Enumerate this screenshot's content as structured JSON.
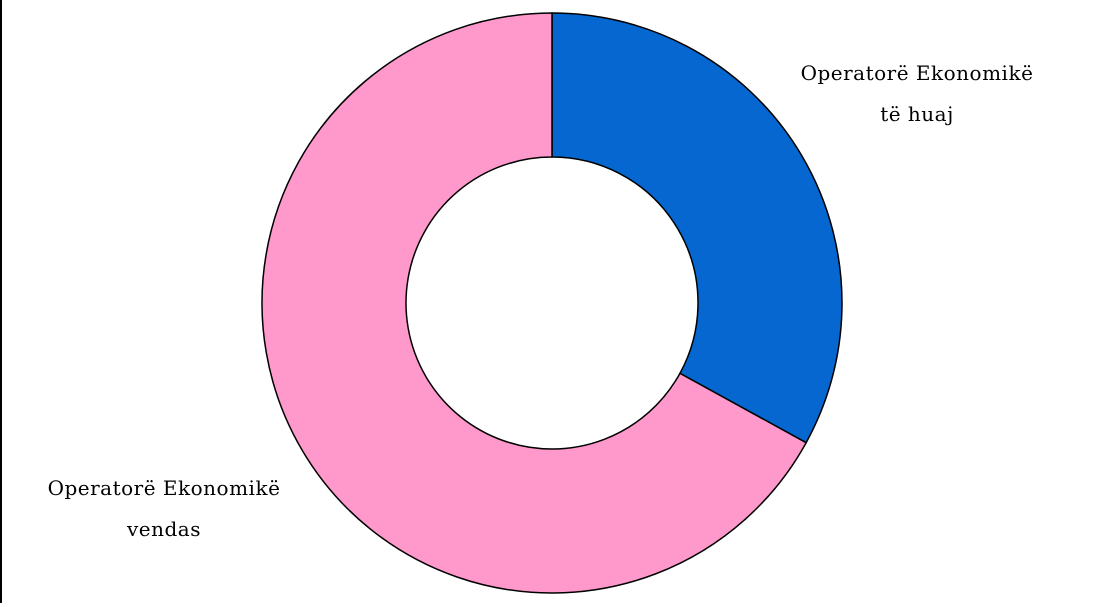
{
  "chart_data": {
    "type": "pie",
    "variant": "donut",
    "slices": [
      {
        "label_lines": [
          "Operatorë Ekonomikë",
          "të huaj"
        ],
        "value": 33,
        "color": "#0567CF"
      },
      {
        "label_lines": [
          "Operatorë Ekonomikë",
          "vendas"
        ],
        "value": 67,
        "color": "#FF99CC"
      }
    ],
    "start_angle_deg": 0,
    "direction": "clockwise",
    "legend": "none"
  }
}
